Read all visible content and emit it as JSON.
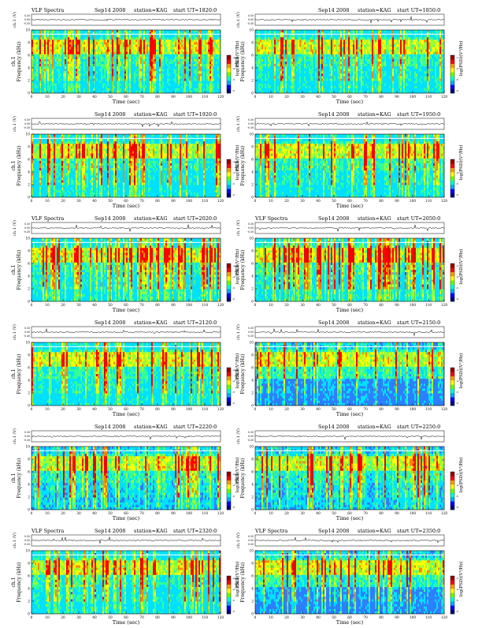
{
  "page": {
    "title": "VLF Spectra stack — Sep 14 2008, station KAG"
  },
  "palette": {
    "colorbar": [
      "#000080",
      "#0000ff",
      "#00aaff",
      "#00ffcc",
      "#66ff00",
      "#ffff00",
      "#ff9900",
      "#ff0000",
      "#990000"
    ],
    "noise_colors": [
      "#00e0ff",
      "#33ff99",
      "#99ff33"
    ],
    "band_colors": [
      "#ffff00",
      "#ff8800",
      "#ff0000"
    ],
    "trace": "#000000"
  },
  "labels": {
    "header_title": "VLF Spectra",
    "header_date": "Sep14 2008",
    "header_station": "station=KAG",
    "header_start": "start UT",
    "ylabel_top": "ch.1 (V)",
    "ylabel_main": "Frequency (kHz)",
    "ylabel_main_left": "ch.1",
    "xlabel": "Time (sec)",
    "cbar_label": "log(PSD)(V²/Hz)"
  },
  "chart_data": [
    {
      "type": "heatmap",
      "panel": 1,
      "title": "VLF Spectra",
      "date": "Sep14 2008",
      "station": "station=KAG",
      "start_ut": "=1820:0",
      "intensity": "medium",
      "x_range": [
        0,
        120
      ],
      "xlabel": "Time (sec)",
      "y_range": [
        0,
        10
      ],
      "ylabel": "Frequency (kHz)",
      "trace_yticks": [
        "0.30",
        "0.00",
        "-0.30"
      ]
    },
    {
      "type": "heatmap",
      "panel": 2,
      "title": "",
      "date": "Sep14 2008",
      "station": "station=KAG",
      "start_ut": "=1850:0",
      "intensity": "medium",
      "x_range": [
        0,
        120
      ],
      "xlabel": "Time (sec)",
      "y_range": [
        0,
        10
      ],
      "ylabel": "Frequency (kHz)",
      "trace_yticks": [
        "0.30",
        "0.00",
        "-0.30"
      ]
    },
    {
      "type": "heatmap",
      "panel": 3,
      "title": "",
      "date": "Sep14 2008",
      "station": "station=KAG",
      "start_ut": "=1920:0",
      "intensity": "medium",
      "x_range": [
        0,
        120
      ],
      "xlabel": "Time (sec)",
      "y_range": [
        0,
        10
      ],
      "ylabel": "Frequency (kHz)",
      "trace_yticks": [
        "0.30",
        "0.00",
        "-0.30"
      ]
    },
    {
      "type": "heatmap",
      "panel": 4,
      "title": "",
      "date": "Sep14 2008",
      "station": "station=KAG",
      "start_ut": "=1950:0",
      "intensity": "medium",
      "x_range": [
        0,
        120
      ],
      "xlabel": "Time (sec)",
      "y_range": [
        0,
        10
      ],
      "ylabel": "Frequency (kHz)",
      "trace_yticks": [
        "0.30",
        "0.00",
        "-0.30"
      ]
    },
    {
      "type": "heatmap",
      "panel": 5,
      "title": "VLF Spectra",
      "date": "Sep14 2008",
      "station": "station=KAG",
      "start_ut": "=2020:0",
      "intensity": "high",
      "x_range": [
        0,
        120
      ],
      "xlabel": "Time (sec)",
      "y_range": [
        0,
        10
      ],
      "ylabel": "Frequency (kHz)",
      "trace_yticks": [
        "0.30",
        "0.00",
        "-0.30"
      ]
    },
    {
      "type": "heatmap",
      "panel": 6,
      "title": "VLF Spectra",
      "date": "Sep14 2008",
      "station": "station=KAG",
      "start_ut": "=2050:0",
      "intensity": "high",
      "x_range": [
        0,
        120
      ],
      "xlabel": "Time (sec)",
      "y_range": [
        0,
        10
      ],
      "ylabel": "Frequency (kHz)",
      "trace_yticks": [
        "0.30",
        "0.00",
        "-0.30"
      ]
    },
    {
      "type": "heatmap",
      "panel": 7,
      "title": "",
      "date": "Sep14 2008",
      "station": "station=KAG",
      "start_ut": "=2120:0",
      "intensity": "medium",
      "x_range": [
        0,
        120
      ],
      "xlabel": "Time (sec)",
      "y_range": [
        0,
        10
      ],
      "ylabel": "Frequency (kHz)",
      "trace_yticks": [
        "0.30",
        "0.00",
        "-0.30"
      ]
    },
    {
      "type": "heatmap",
      "panel": 8,
      "title": "",
      "date": "Sep14 2008",
      "station": "station=KAG",
      "start_ut": "=2150:0",
      "intensity": "cool",
      "x_range": [
        0,
        120
      ],
      "xlabel": "Time (sec)",
      "y_range": [
        0,
        10
      ],
      "ylabel": "Frequency (kHz)",
      "trace_yticks": [
        "0.30",
        "0.00",
        "-0.30"
      ]
    },
    {
      "type": "heatmap",
      "panel": 9,
      "title": "",
      "date": "Sep14 2008",
      "station": "station=KAG",
      "start_ut": "=2220:0",
      "intensity": "mixed",
      "x_range": [
        0,
        120
      ],
      "xlabel": "Time (sec)",
      "y_range": [
        0,
        10
      ],
      "ylabel": "Frequency (kHz)",
      "trace_yticks": [
        "0.30",
        "0.00",
        "-0.30"
      ]
    },
    {
      "type": "heatmap",
      "panel": 10,
      "title": "",
      "date": "Sep14 2008",
      "station": "station=KAG",
      "start_ut": "=2250:0",
      "intensity": "mixed",
      "x_range": [
        0,
        120
      ],
      "xlabel": "Time (sec)",
      "y_range": [
        0,
        10
      ],
      "ylabel": "Frequency (kHz)",
      "trace_yticks": [
        "0.30",
        "0.00",
        "-0.30"
      ]
    },
    {
      "type": "heatmap",
      "panel": 11,
      "title": "VLF Spectra",
      "date": "Sep14 2008",
      "station": "station=KAG",
      "start_ut": "=2320:0",
      "intensity": "medium",
      "x_range": [
        0,
        120
      ],
      "xlabel": "Time (sec)",
      "y_range": [
        0,
        10
      ],
      "ylabel": "Frequency (kHz)",
      "trace_yticks": [
        "0.30",
        "0.00",
        "-0.30"
      ]
    },
    {
      "type": "heatmap",
      "panel": 12,
      "title": "VLF Spectra",
      "date": "Sep14 2008",
      "station": "station=KAG",
      "start_ut": "=2350:0",
      "intensity": "cool",
      "x_range": [
        0,
        120
      ],
      "xlabel": "Time (sec)",
      "y_range": [
        0,
        10
      ],
      "ylabel": "Frequency (kHz)",
      "trace_yticks": [
        "0.30",
        "0.00",
        "-0.30"
      ]
    }
  ],
  "axes": {
    "x_ticks": [
      "0",
      "10",
      "20",
      "30",
      "40",
      "50",
      "60",
      "70",
      "80",
      "90",
      "100",
      "110",
      "120"
    ],
    "y_ticks": [
      "0",
      "2",
      "4",
      "6",
      "8",
      "10"
    ],
    "cbar_ticks": [
      "-2",
      "-4",
      "-6",
      "-8"
    ]
  }
}
